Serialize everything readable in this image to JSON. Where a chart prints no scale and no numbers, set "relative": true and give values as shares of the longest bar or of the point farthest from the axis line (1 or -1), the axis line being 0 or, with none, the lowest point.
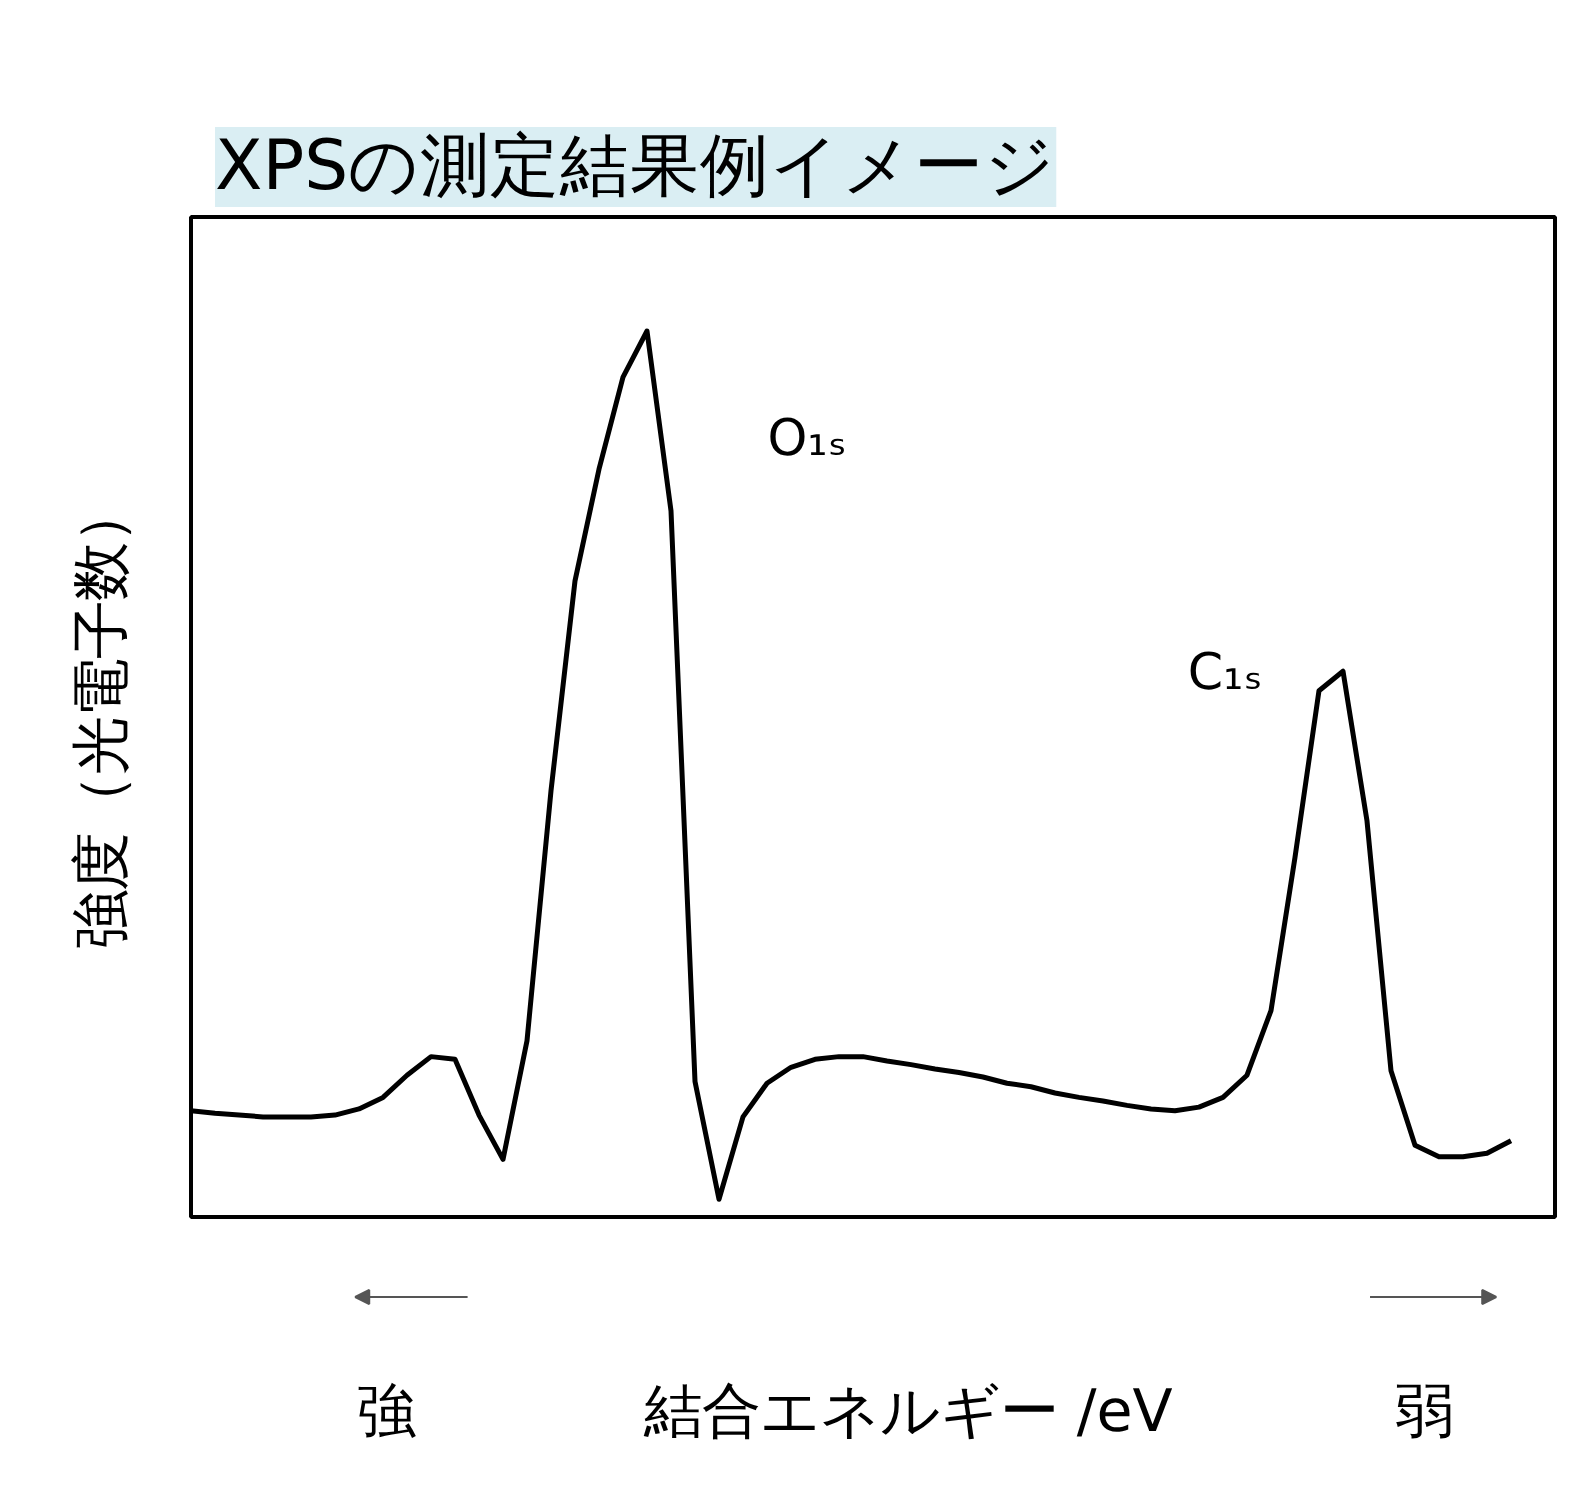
{
  "chart_data": {
    "type": "line",
    "title": "XPSの測定結果例イメージ",
    "ylabel": "強度（光電子数）",
    "xlabel": "結合エネルギー /eV",
    "relative": true,
    "tick_labels": false,
    "categories": [
      null,
      null,
      null,
      null,
      null,
      null,
      null,
      null,
      null,
      null,
      null,
      null,
      null,
      null,
      null,
      null,
      null,
      null,
      null,
      null,
      null,
      null,
      null,
      null,
      null,
      null,
      null,
      null,
      null,
      null,
      null,
      null,
      null,
      null,
      null,
      null,
      null,
      null,
      null,
      null,
      null,
      null,
      null,
      null,
      null,
      null,
      null,
      null,
      null,
      null,
      null,
      null,
      null,
      null,
      null,
      null
    ],
    "series": [
      {
        "color": "#000000",
        "values": [
          0.12,
          0.117,
          0.115,
          0.113,
          0.113,
          0.113,
          0.115,
          0.122,
          0.135,
          0.16,
          0.181,
          0.178,
          0.115,
          0.065,
          0.199,
          0.481,
          0.718,
          0.844,
          0.948,
          1.0,
          0.797,
          0.153,
          0.02,
          0.113,
          0.151,
          0.169,
          0.178,
          0.181,
          0.181,
          0.176,
          0.172,
          0.167,
          0.163,
          0.158,
          0.151,
          0.147,
          0.14,
          0.135,
          0.131,
          0.126,
          0.122,
          0.12,
          0.124,
          0.135,
          0.16,
          0.233,
          0.406,
          0.594,
          0.616,
          0.447,
          0.165,
          0.081,
          0.068,
          0.068,
          0.072,
          0.086
        ]
      }
    ],
    "annotations": [
      "O₁ₛ",
      "C₁ₛ",
      "強",
      "弱"
    ]
  }
}
